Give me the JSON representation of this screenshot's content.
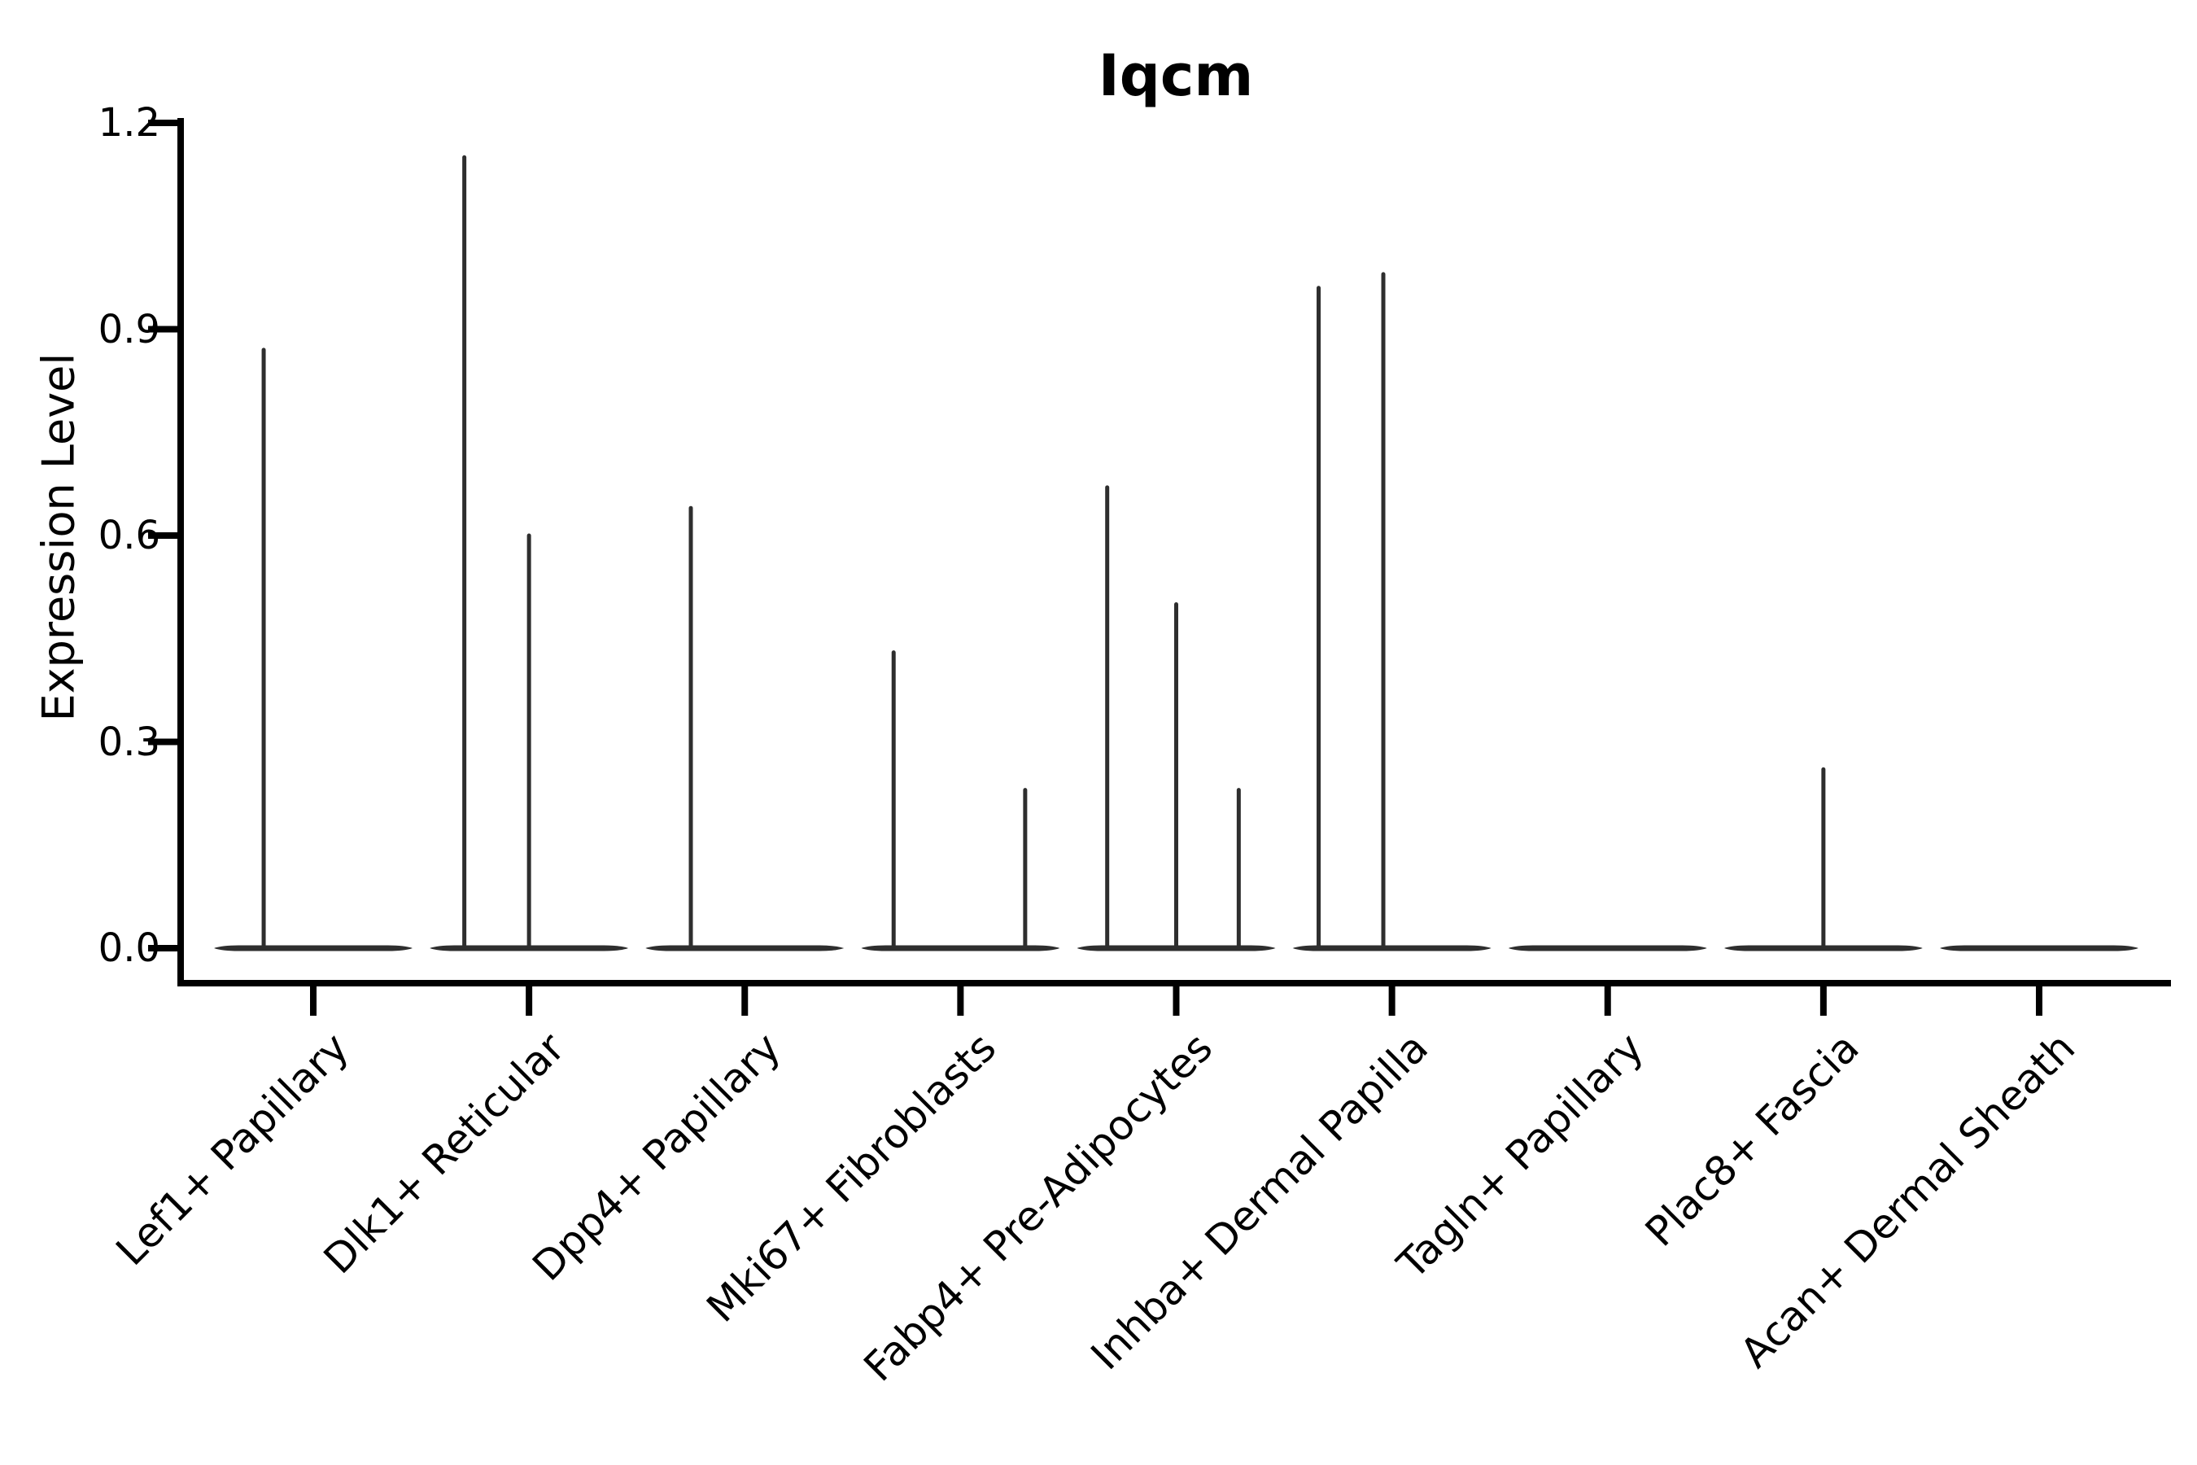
{
  "figure": {
    "title": "Iqcm",
    "ylabel": "Expression Level"
  },
  "chart_data": {
    "type": "violin",
    "title": "Iqcm",
    "xlabel": "",
    "ylabel": "Expression Level",
    "ylim": [
      -0.05,
      1.21
    ],
    "yticks": [
      0.0,
      0.3,
      0.6,
      0.9,
      1.2
    ],
    "ytick_labels": [
      "0.0",
      "0.3",
      "0.6",
      "0.9",
      "1.2"
    ],
    "grid": false,
    "legend": null,
    "categories": [
      "Lef1+ Papillary",
      "Dlk1+ Reticular",
      "Dpp4+ Papillary",
      "Mki67+ Fibroblasts",
      "Fabp4+ Pre-Adipocytes",
      "Inhba+ Dermal Papilla",
      "Tagln+ Papillary",
      "Plac8+ Fascia",
      "Acan+ Dermal Sheath"
    ],
    "violins": [
      {
        "category": "Lef1+ Papillary",
        "max_expression": 0.87,
        "peaks": [
          {
            "offset": -0.23,
            "value": 0.87
          }
        ]
      },
      {
        "category": "Dlk1+ Reticular",
        "max_expression": 1.15,
        "peaks": [
          {
            "offset": -0.3,
            "value": 1.15
          },
          {
            "offset": 0.0,
            "value": 0.6
          }
        ]
      },
      {
        "category": "Dpp4+ Papillary",
        "max_expression": 0.64,
        "peaks": [
          {
            "offset": -0.25,
            "value": 0.64
          }
        ]
      },
      {
        "category": "Mki67+ Fibroblasts",
        "max_expression": 0.43,
        "peaks": [
          {
            "offset": -0.31,
            "value": 0.43
          },
          {
            "offset": 0.3,
            "value": 0.23
          }
        ]
      },
      {
        "category": "Fabp4+ Pre-Adipocytes",
        "max_expression": 0.67,
        "peaks": [
          {
            "offset": -0.32,
            "value": 0.67
          },
          {
            "offset": 0.0,
            "value": 0.5
          },
          {
            "offset": 0.29,
            "value": 0.23
          }
        ]
      },
      {
        "category": "Inhba+ Dermal Papilla",
        "max_expression": 0.98,
        "peaks": [
          {
            "offset": -0.34,
            "value": 0.96
          },
          {
            "offset": -0.04,
            "value": 0.98
          }
        ]
      },
      {
        "category": "Tagln+ Papillary",
        "max_expression": 0.0,
        "peaks": []
      },
      {
        "category": "Plac8+ Fascia",
        "max_expression": 0.26,
        "peaks": [
          {
            "offset": 0.0,
            "value": 0.26
          }
        ]
      },
      {
        "category": "Acan+ Dermal Sheath",
        "max_expression": 0.0,
        "peaks": []
      }
    ],
    "colors": {
      "violin": "#2e2e2e",
      "axis": "#000000",
      "text": "#000000",
      "background": "#ffffff"
    }
  }
}
